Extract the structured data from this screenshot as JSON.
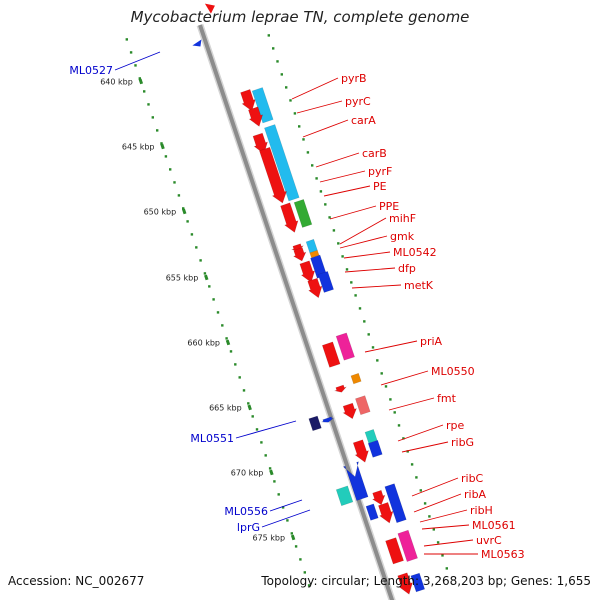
{
  "title": "Mycobacterium leprae TN, complete genome",
  "footer": {
    "accession": "Accession: NC_002677",
    "summary": "Topology: circular; Length: 3,268,203 bp; Genes: 1,655"
  },
  "colors": {
    "backbone": "#8c8c8c",
    "tick_dots": "#2a8a2a",
    "forward_label": "#dd0000",
    "reverse_label": "#0000cc",
    "cds_red": "#ee1111",
    "cyan": "#22bbee",
    "green": "#33aa33",
    "blue": "#1133dd",
    "orange": "#ee8800",
    "magenta": "#ee2299",
    "salmon": "#ee6666",
    "teal": "#22ccbb",
    "navy": "#1a1a66"
  },
  "scale": {
    "unit": "kbp",
    "ticks": [
      {
        "label": "640 kbp"
      },
      {
        "label": "645 kbp"
      },
      {
        "label": "650 kbp"
      },
      {
        "label": "655 kbp"
      },
      {
        "label": "660 kbp"
      },
      {
        "label": "665 kbp"
      },
      {
        "label": "670 kbp"
      },
      {
        "label": "675 kbp"
      }
    ]
  },
  "forward_labels": [
    "pyrB",
    "pyrC",
    "carA",
    "carB",
    "pyrF",
    "PE",
    "PPE",
    "mihF",
    "gmk",
    "ML0542",
    "dfp",
    "metK",
    "priA",
    "ML0550",
    "fmt",
    "rpe",
    "ribG",
    "ribC",
    "ribA",
    "ribH",
    "ML0561",
    "uvrC",
    "ML0563"
  ],
  "reverse_labels": [
    "ML0527",
    "ML0551",
    "ML0556",
    "lprG"
  ]
}
